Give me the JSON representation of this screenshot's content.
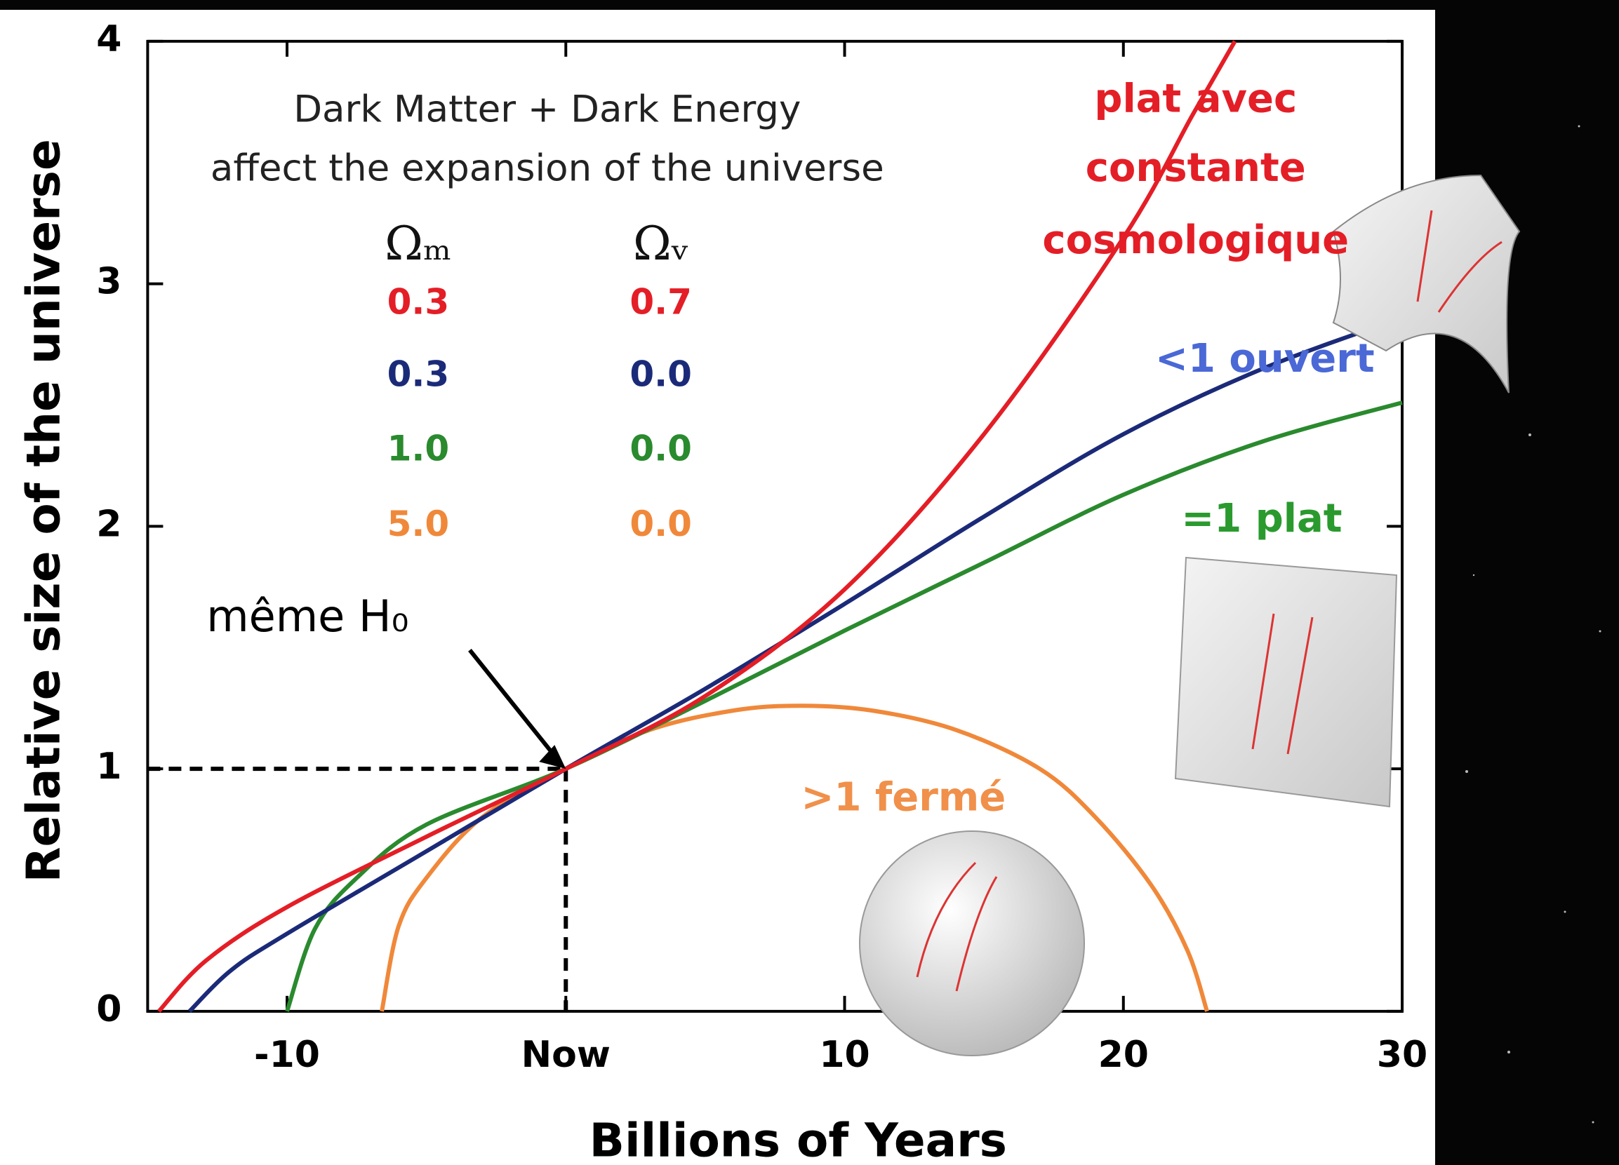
{
  "chart_data": {
    "type": "line",
    "y_label": "Relative size of the universe",
    "x_label": "Billions of Years",
    "legend_title": [
      "Dark Matter + Dark Energy",
      "affect the expansion of the universe"
    ],
    "legend_table": {
      "headers": [
        "Ωₘ",
        "Ωᵥ"
      ],
      "rows": [
        [
          "0.3",
          "0.7"
        ],
        [
          "0.3",
          "0.0"
        ],
        [
          "1.0",
          "0.0"
        ],
        [
          "5.0",
          "0.0"
        ]
      ]
    },
    "xlim": [
      -15,
      30
    ],
    "ylim": [
      0,
      4
    ],
    "xticks": [
      -10,
      {
        "value": 0,
        "label": "Now"
      },
      10,
      20,
      30
    ],
    "yticks": [
      0,
      1,
      2,
      3,
      4
    ],
    "series": [
      {
        "color": "#e41e26",
        "x": [
          -14.6,
          -12.9,
          -10,
          -5,
          0,
          5,
          10,
          15,
          20,
          22.5,
          24
        ],
        "values": [
          0,
          0.21,
          0.43,
          0.72,
          1,
          1.3,
          1.74,
          2.38,
          3.19,
          3.7,
          4.0
        ]
      },
      {
        "color": "#1b2a78",
        "x": [
          -13.5,
          -12,
          -10,
          -5,
          0,
          5,
          10,
          15,
          20,
          25,
          30
        ],
        "values": [
          0,
          0.17,
          0.32,
          0.66,
          1,
          1.33,
          1.68,
          2.04,
          2.38,
          2.65,
          2.86
        ]
      },
      {
        "color": "#2a8a2e",
        "x": [
          -10,
          -9,
          -7.5,
          -5,
          0,
          5,
          10,
          15,
          20,
          25,
          30
        ],
        "values": [
          0,
          0.34,
          0.55,
          0.77,
          1,
          1.28,
          1.57,
          1.85,
          2.13,
          2.35,
          2.51
        ]
      },
      {
        "color": "#f0883a",
        "x": [
          -6.6,
          -6,
          -5,
          -3,
          0,
          3,
          6,
          8.4,
          11,
          14,
          17,
          19,
          21,
          22.3,
          23
        ],
        "values": [
          0,
          0.35,
          0.55,
          0.8,
          1,
          1.16,
          1.24,
          1.26,
          1.24,
          1.16,
          1.0,
          0.8,
          0.52,
          0.25,
          0
        ]
      }
    ],
    "annotations": [
      {
        "text": "plat avec",
        "color": "#e41e26"
      },
      {
        "text": "constante",
        "color": "#e41e26"
      },
      {
        "text": "cosmologique",
        "color": "#e41e26"
      },
      {
        "text": "<1 ouvert",
        "color": "#4a68d6"
      },
      {
        "text": "=1 plat",
        "color": "#2a9a2e"
      },
      {
        "text": ">1 fermé",
        "color": "#f0904a"
      },
      {
        "text": "même H₀",
        "color": "#000000"
      }
    ]
  }
}
